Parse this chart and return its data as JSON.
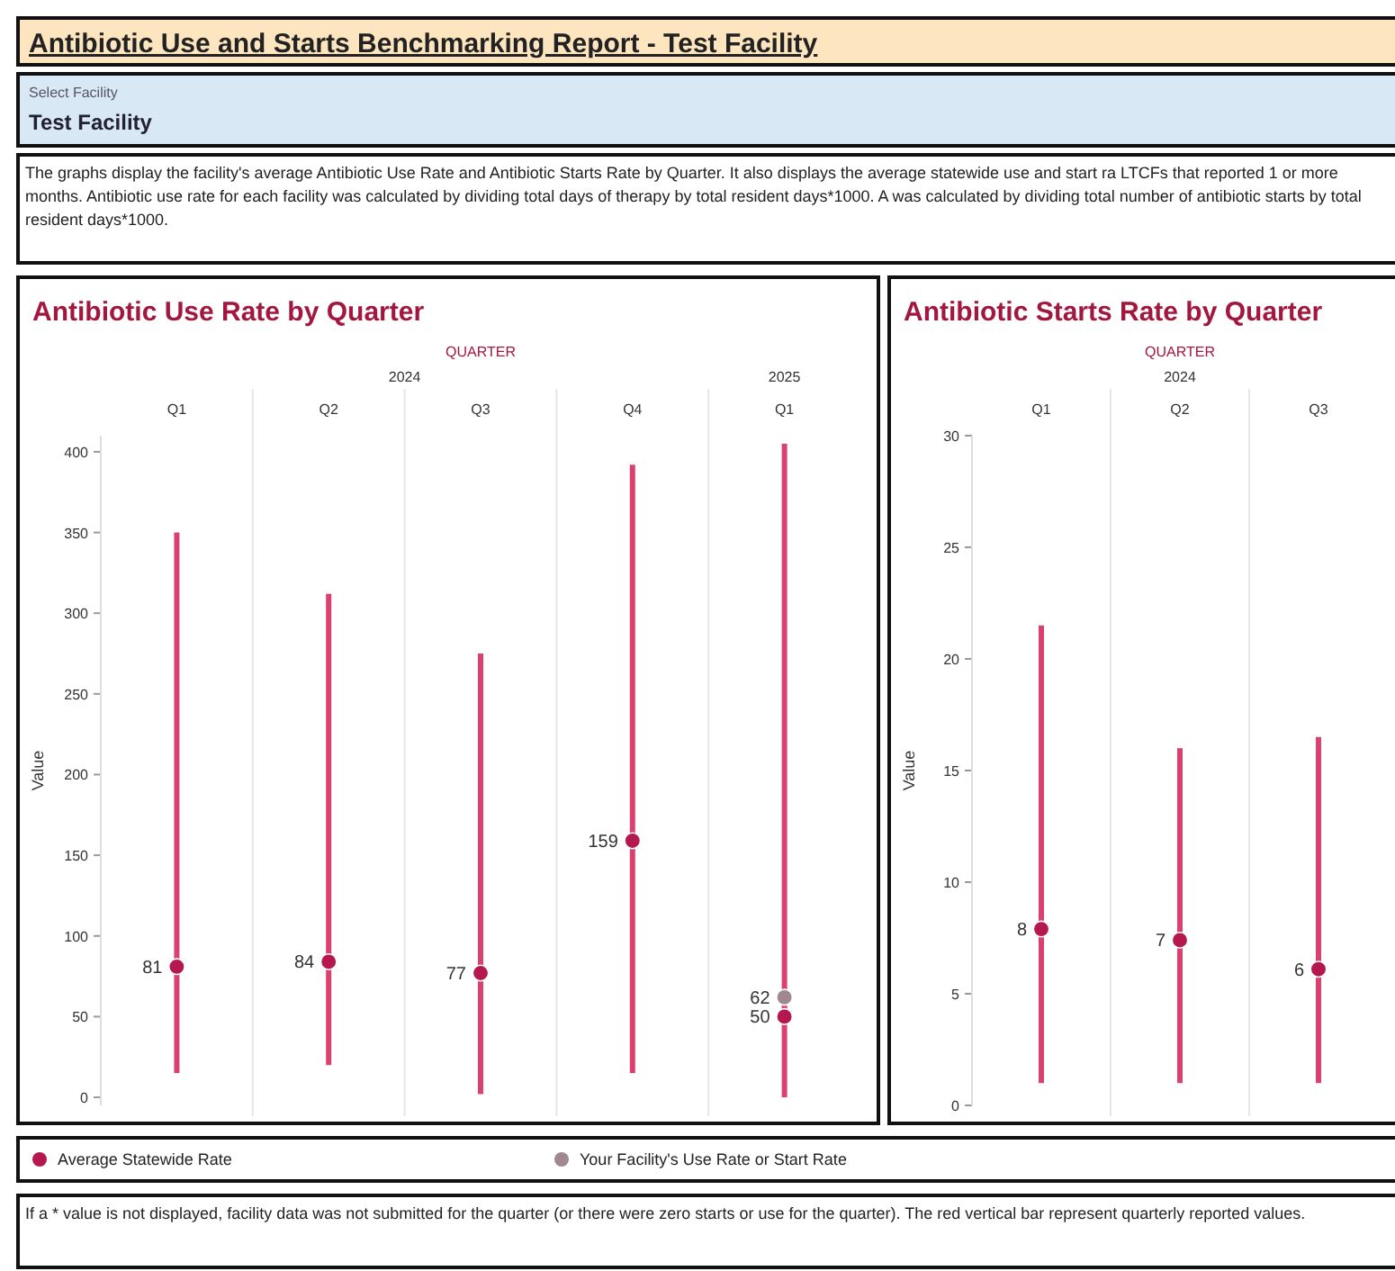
{
  "chart_data": [
    {
      "type": "other",
      "title": "Antibiotic Use and Starts Benchmarking Report - Test Facility",
      "annotations": [
        "Select Facility",
        "Test Facility",
        "The graphs display the facility's average Antibiotic Use Rate and Antibiotic Starts Rate by Quarter. It also displays the average statewide use and start ra LTCFs that reported 1 or more months. Antibiotic use rate for each facility was calculated by dividing total days of therapy by total resident days*1000. A was calculated by dividing total number of antibiotic starts by total resident days*1000.",
        "If a * value is not displayed, facility data was not submitted for the quarter (or there were zero starts or use for the quarter). The red vertical bar represent quarterly reported values."
      ]
    },
    {
      "type": "bar",
      "title": "Antibiotic Use Rate by Quarter",
      "xlabel": "QUARTER",
      "ylabel": "Value",
      "categories": [
        "Q1",
        "Q2",
        "Q3",
        "Q4",
        "Q1"
      ],
      "annotations": [
        "2024",
        "2025"
      ],
      "ylim": [
        -5,
        410
      ],
      "yticks": [
        0,
        50,
        100,
        150,
        200,
        250,
        300,
        350,
        400
      ],
      "legend": "bottom",
      "marker": "circle",
      "series": [
        {
          "type": "bar",
          "color": "#d9416f",
          "base": [
            15,
            20,
            2,
            15,
            0
          ],
          "values": [
            335,
            292,
            273,
            377,
            405
          ]
        },
        {
          "type": "scatter",
          "name": "Average Statewide Rate",
          "color": "#b5174f",
          "values": [
            81,
            84,
            77,
            159,
            50
          ],
          "value_labels": [
            "81",
            "84",
            "77",
            "159",
            "50"
          ]
        },
        {
          "type": "scatter",
          "name": "Your Facility's Use Rate or Start Rate",
          "color": "#a08890",
          "values": [
            null,
            null,
            null,
            null,
            62
          ],
          "value_labels": [
            null,
            null,
            null,
            null,
            "62"
          ]
        }
      ]
    },
    {
      "type": "bar",
      "title": "Antibiotic Starts Rate by Quarter",
      "xlabel": "QUARTER",
      "ylabel": "Value",
      "categories": [
        "Q1",
        "Q2",
        "Q3"
      ],
      "annotations": [
        "2024"
      ],
      "ylim": [
        0,
        30
      ],
      "yticks": [
        0,
        5,
        10,
        15,
        20,
        25,
        30
      ],
      "marker": "circle",
      "series": [
        {
          "type": "bar",
          "color": "#d9416f",
          "base": [
            1,
            1,
            1
          ],
          "values": [
            20.5,
            15,
            15.5
          ]
        },
        {
          "type": "scatter",
          "color": "#b5174f",
          "values": [
            7.9,
            7.4,
            6.1
          ],
          "value_labels": [
            "8",
            "7",
            "6"
          ]
        }
      ]
    }
  ]
}
